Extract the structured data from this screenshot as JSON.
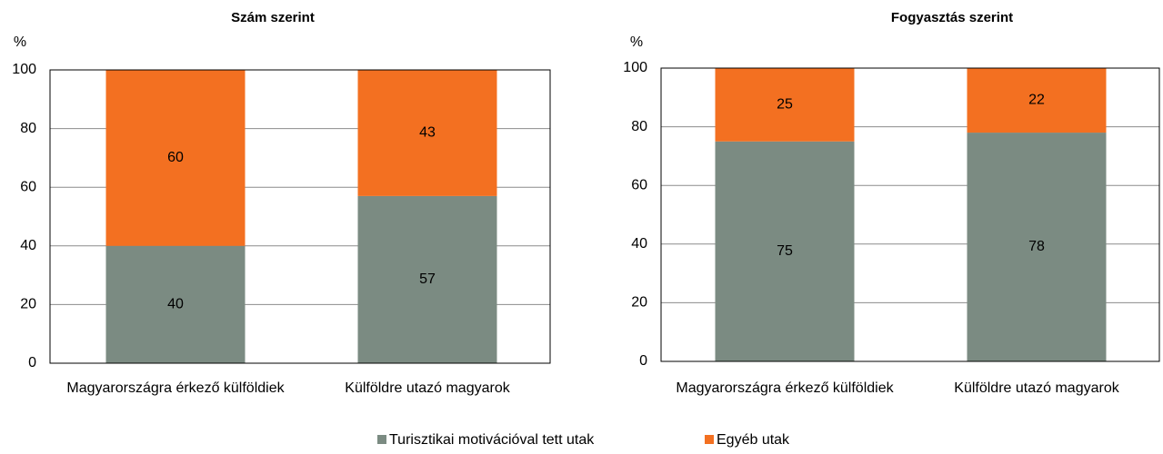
{
  "chart_data": [
    {
      "type": "bar",
      "stacked": true,
      "title": "Szám szerint",
      "y_label": "%",
      "categories": [
        "Magyarországra érkező külföldiek",
        "Külföldre utazó magyarok"
      ],
      "series": [
        {
          "name": "Turisztikai motivációval tett utak",
          "color": "#7b8b82",
          "values": [
            40,
            57
          ]
        },
        {
          "name": "Egyéb utak",
          "color": "#f37021",
          "values": [
            60,
            43
          ]
        }
      ],
      "ylim": [
        0,
        100
      ],
      "yticks": [
        0,
        20,
        40,
        60,
        80,
        100
      ],
      "grid": true
    },
    {
      "type": "bar",
      "stacked": true,
      "title": "Fogyasztás szerint",
      "y_label": "%",
      "categories": [
        "Magyarországra érkező külföldiek",
        "Külföldre utazó magyarok"
      ],
      "series": [
        {
          "values": [
            75,
            78
          ]
        },
        {
          "values": [
            25,
            22
          ]
        }
      ],
      "ylim": [
        0,
        100
      ],
      "yticks": [
        0,
        20,
        40,
        60,
        80,
        100
      ],
      "grid": true
    }
  ]
}
